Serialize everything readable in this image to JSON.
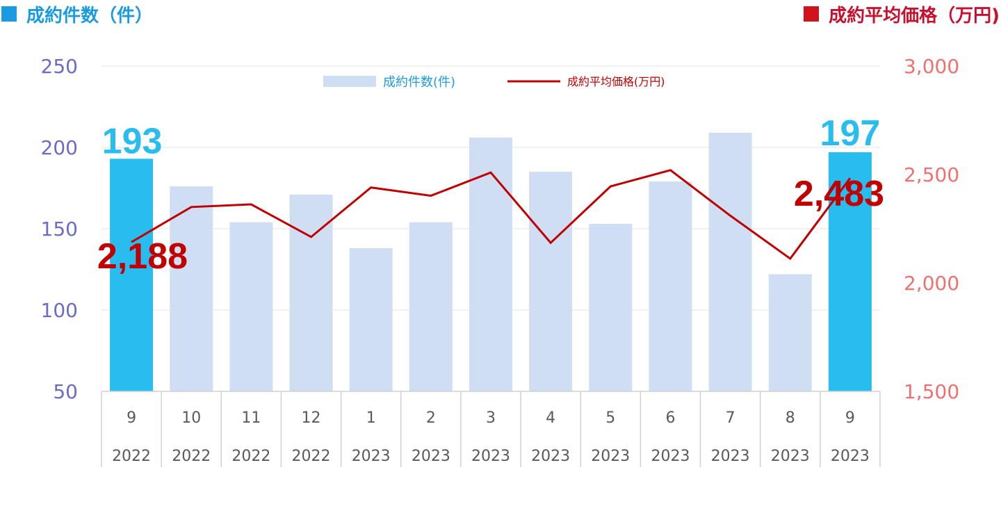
{
  "header": {
    "left_title": "成約件数（件）",
    "right_title": "成約平均価格（万円)"
  },
  "colors": {
    "highlight_bar": "#29BDEF",
    "normal_bar": "#CFDEF3",
    "line": "#C00000",
    "left_axis": "#6B6BC8",
    "right_axis": "#F07070",
    "left_header": "#1A9BE0",
    "right_header": "#D0141E"
  },
  "chart_data": {
    "type": "bar",
    "categories": [
      {
        "month": "9",
        "year": "2022"
      },
      {
        "month": "10",
        "year": "2022"
      },
      {
        "month": "11",
        "year": "2022"
      },
      {
        "month": "12",
        "year": "2022"
      },
      {
        "month": "1",
        "year": "2023"
      },
      {
        "month": "2",
        "year": "2023"
      },
      {
        "month": "3",
        "year": "2023"
      },
      {
        "month": "4",
        "year": "2023"
      },
      {
        "month": "5",
        "year": "2023"
      },
      {
        "month": "6",
        "year": "2023"
      },
      {
        "month": "7",
        "year": "2023"
      },
      {
        "month": "8",
        "year": "2023"
      },
      {
        "month": "9",
        "year": "2023"
      }
    ],
    "series": [
      {
        "name": "成約件数(件)",
        "type": "bar",
        "axis": "left",
        "values": [
          193,
          176,
          154,
          171,
          138,
          154,
          206,
          185,
          153,
          179,
          209,
          122,
          197
        ],
        "highlighted": [
          0,
          12
        ]
      },
      {
        "name": "成約平均価格(万円)",
        "type": "line",
        "axis": "right",
        "values": [
          2188,
          2350,
          2362,
          2212,
          2440,
          2402,
          2509,
          2185,
          2445,
          2520,
          2310,
          2112,
          2483
        ]
      }
    ],
    "left_axis": {
      "ylim": [
        50,
        250
      ],
      "ticks": [
        "50",
        "100",
        "150",
        "200",
        "250"
      ]
    },
    "right_axis": {
      "ylim": [
        1500,
        3000
      ],
      "ticks": [
        "1,500",
        "2,000",
        "2,500",
        "3,000"
      ]
    },
    "data_labels": {
      "bar_first": "193",
      "bar_last": "197",
      "line_first": "2,188",
      "line_last": "2,483"
    },
    "legend": {
      "placement": "top-center",
      "bar_label": "成約件数(件)",
      "line_label": "成約平均価格(万円)"
    },
    "grid": true
  }
}
